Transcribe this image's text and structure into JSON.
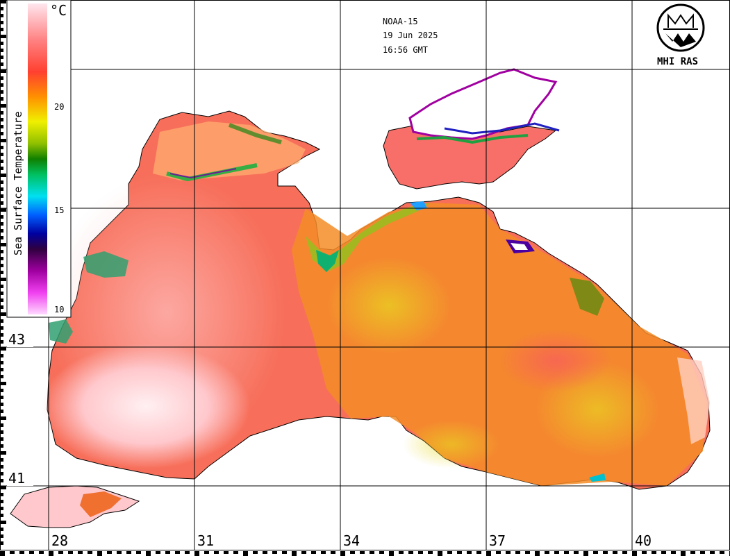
{
  "satellite": "NOAA-15",
  "date": "19 Jun 2025",
  "time": "16:56 GMT",
  "logo_text": "MHI RAS",
  "colorbar": {
    "title": "Sea Surface Temperature",
    "unit": "°C",
    "ticks": [
      "20",
      "15",
      "10"
    ],
    "range": [
      10,
      25
    ],
    "colors": [
      "#ffe0f0",
      "#e040e0",
      "#500050",
      "#0000ff",
      "#00d0ff",
      "#00c060",
      "#109000",
      "#f0f000",
      "#ff8000",
      "#ff5040",
      "#ff9090",
      "#ffe0e8"
    ]
  },
  "latitude_labels": [
    "43",
    "41"
  ],
  "longitude_labels": [
    "28",
    "31",
    "34",
    "37",
    "40"
  ],
  "colors": {
    "warm_water": "#f86a5e",
    "warmest_water": "#ffd8dc",
    "mid_water": "#f58a2a",
    "cool_water": "#d8d800",
    "coldest_water": "#0000cc",
    "cloud": "#ffffff",
    "land": "#ffffff",
    "grid": "#000000"
  }
}
